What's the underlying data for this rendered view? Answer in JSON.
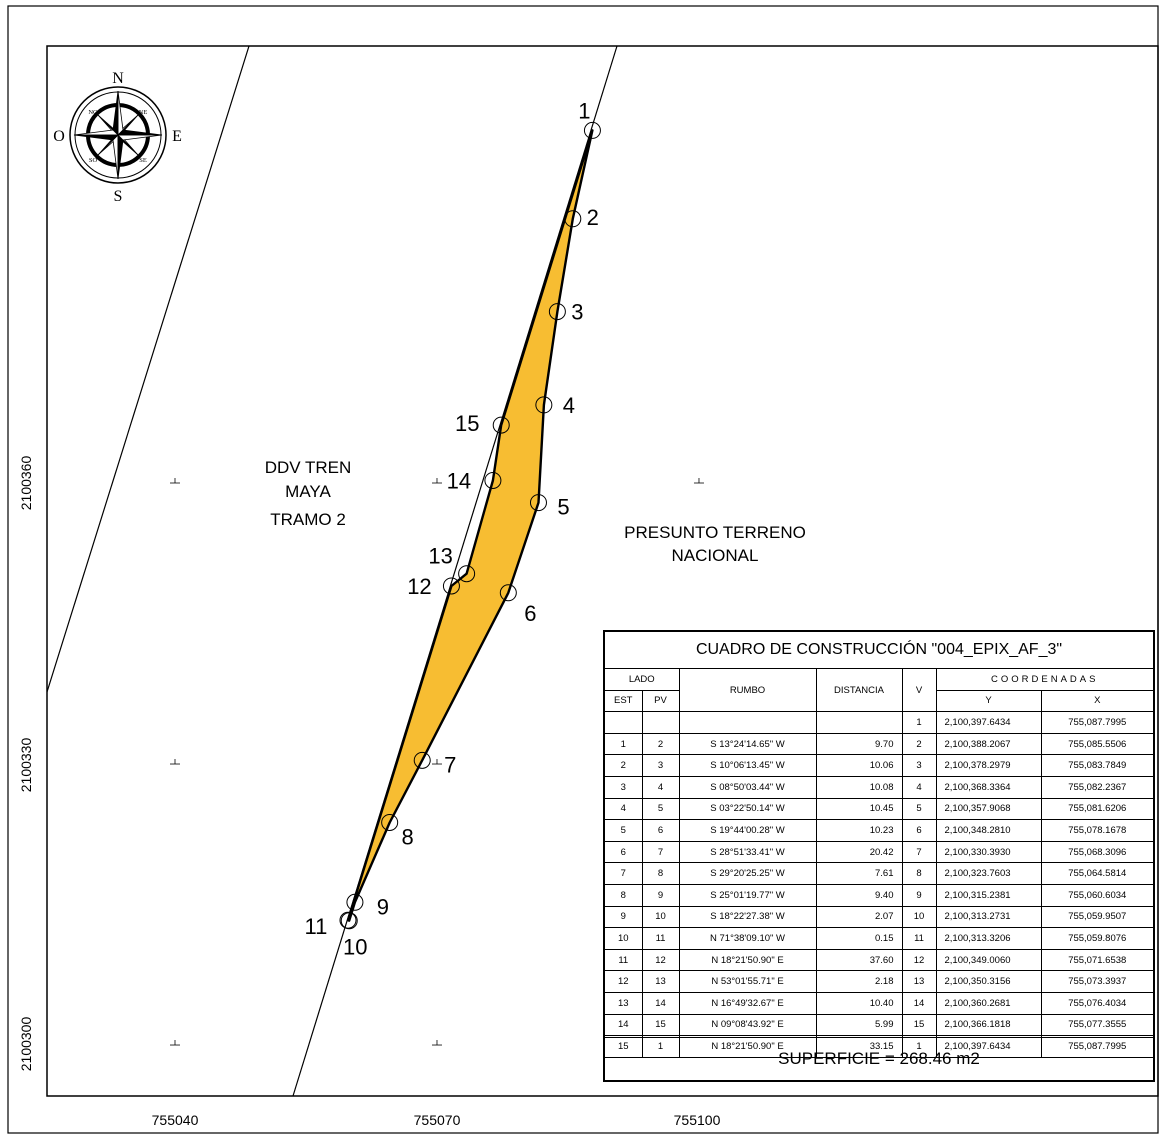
{
  "axes": {
    "x_ticks": [
      "755040",
      "755070",
      "755100"
    ],
    "y_ticks": [
      "2100360",
      "2100330",
      "2100300"
    ]
  },
  "compass": {
    "north": "N",
    "south": "S",
    "east": "E",
    "west": "O",
    "ne": "NE",
    "no": "NO",
    "se": "SE",
    "so": "SO"
  },
  "labels": {
    "ddv_line1": "DDV TREN",
    "ddv_line2": "MAYA",
    "ddv_line3": "TRAMO 2",
    "terreno_line1": "PRESUNTO TERRENO",
    "terreno_line2": "NACIONAL"
  },
  "polygon": {
    "fill_color": "#f7bd32",
    "vertices": [
      {
        "v": "1",
        "y": 2100397.6434,
        "x": 755087.7995
      },
      {
        "v": "2",
        "y": 2100388.2067,
        "x": 755085.5506
      },
      {
        "v": "3",
        "y": 2100378.2979,
        "x": 755083.7849
      },
      {
        "v": "4",
        "y": 2100368.3364,
        "x": 755082.2367
      },
      {
        "v": "5",
        "y": 2100357.9068,
        "x": 755081.6206
      },
      {
        "v": "6",
        "y": 2100348.281,
        "x": 755078.1678
      },
      {
        "v": "7",
        "y": 2100330.393,
        "x": 755068.3096
      },
      {
        "v": "8",
        "y": 2100323.7603,
        "x": 755064.5814
      },
      {
        "v": "9",
        "y": 2100315.2381,
        "x": 755060.6034
      },
      {
        "v": "10",
        "y": 2100313.2731,
        "x": 755059.9507
      },
      {
        "v": "11",
        "y": 2100313.3206,
        "x": 755059.8076
      },
      {
        "v": "12",
        "y": 2100349.006,
        "x": 755071.6538
      },
      {
        "v": "13",
        "y": 2100350.3156,
        "x": 755073.3937
      },
      {
        "v": "14",
        "y": 2100360.2681,
        "x": 755076.4034
      },
      {
        "v": "15",
        "y": 2100366.1818,
        "x": 755077.3555
      }
    ]
  },
  "table": {
    "title": "CUADRO DE CONSTRUCCIÓN \"004_EPIX_AF_3\"",
    "headers": {
      "lado": "LADO",
      "est": "EST",
      "pv": "PV",
      "rumbo": "RUMBO",
      "distancia": "DISTANCIA",
      "v": "V",
      "coordenadas": "COORDENADAS",
      "y": "Y",
      "x": "X"
    },
    "first_row": {
      "v": "1",
      "y": "2,100,397.6434",
      "x": "755,087.7995"
    },
    "rows": [
      {
        "est": "1",
        "pv": "2",
        "rumbo": "S 13°24'14.65\" W",
        "dist": "9.70",
        "v": "2",
        "y": "2,100,388.2067",
        "x": "755,085.5506"
      },
      {
        "est": "2",
        "pv": "3",
        "rumbo": "S 10°06'13.45\" W",
        "dist": "10.06",
        "v": "3",
        "y": "2,100,378.2979",
        "x": "755,083.7849"
      },
      {
        "est": "3",
        "pv": "4",
        "rumbo": "S 08°50'03.44\" W",
        "dist": "10.08",
        "v": "4",
        "y": "2,100,368.3364",
        "x": "755,082.2367"
      },
      {
        "est": "4",
        "pv": "5",
        "rumbo": "S 03°22'50.14\" W",
        "dist": "10.45",
        "v": "5",
        "y": "2,100,357.9068",
        "x": "755,081.6206"
      },
      {
        "est": "5",
        "pv": "6",
        "rumbo": "S 19°44'00.28\" W",
        "dist": "10.23",
        "v": "6",
        "y": "2,100,348.2810",
        "x": "755,078.1678"
      },
      {
        "est": "6",
        "pv": "7",
        "rumbo": "S 28°51'33.41\" W",
        "dist": "20.42",
        "v": "7",
        "y": "2,100,330.3930",
        "x": "755,068.3096"
      },
      {
        "est": "7",
        "pv": "8",
        "rumbo": "S 29°20'25.25\" W",
        "dist": "7.61",
        "v": "8",
        "y": "2,100,323.7603",
        "x": "755,064.5814"
      },
      {
        "est": "8",
        "pv": "9",
        "rumbo": "S 25°01'19.77\" W",
        "dist": "9.40",
        "v": "9",
        "y": "2,100,315.2381",
        "x": "755,060.6034"
      },
      {
        "est": "9",
        "pv": "10",
        "rumbo": "S 18°22'27.38\" W",
        "dist": "2.07",
        "v": "10",
        "y": "2,100,313.2731",
        "x": "755,059.9507"
      },
      {
        "est": "10",
        "pv": "11",
        "rumbo": "N 71°38'09.10\" W",
        "dist": "0.15",
        "v": "11",
        "y": "2,100,313.3206",
        "x": "755,059.8076"
      },
      {
        "est": "11",
        "pv": "12",
        "rumbo": "N 18°21'50.90\" E",
        "dist": "37.60",
        "v": "12",
        "y": "2,100,349.0060",
        "x": "755,071.6538"
      },
      {
        "est": "12",
        "pv": "13",
        "rumbo": "N 53°01'55.71\" E",
        "dist": "2.18",
        "v": "13",
        "y": "2,100,350.3156",
        "x": "755,073.3937"
      },
      {
        "est": "13",
        "pv": "14",
        "rumbo": "N 16°49'32.67\" E",
        "dist": "10.40",
        "v": "14",
        "y": "2,100,360.2681",
        "x": "755,076.4034"
      },
      {
        "est": "14",
        "pv": "15",
        "rumbo": "N 09°08'43.92\" E",
        "dist": "5.99",
        "v": "15",
        "y": "2,100,366.1818",
        "x": "755,077.3555"
      },
      {
        "est": "15",
        "pv": "1",
        "rumbo": "N 18°21'50.90\" E",
        "dist": "33.15",
        "v": "1",
        "y": "2,100,397.6434",
        "x": "755,087.7995"
      }
    ],
    "superficie": "SUPERFICIE = 268.46 m2"
  }
}
